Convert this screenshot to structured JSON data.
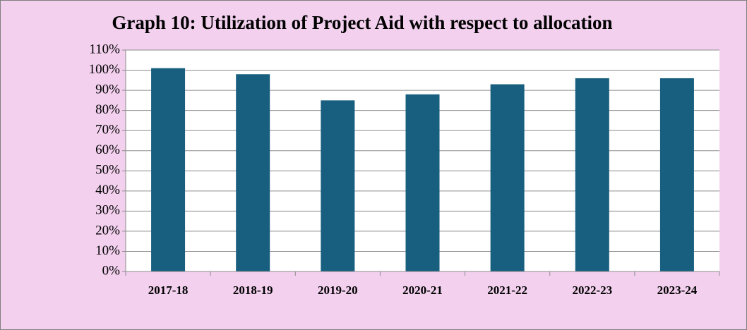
{
  "chart_data": {
    "type": "bar",
    "title": "Graph 10: Utilization of Project Aid with respect to allocation",
    "categories": [
      "2017-18",
      "2018-19",
      "2019-20",
      "2020-21",
      "2021-22",
      "2022-23",
      "2023-24"
    ],
    "values": [
      101,
      98,
      85,
      88,
      93,
      96,
      96
    ],
    "color": "#175e7f",
    "ylim": [
      0,
      110
    ],
    "yticks": [
      {
        "value": 0,
        "label": "0%"
      },
      {
        "value": 10,
        "label": "10%"
      },
      {
        "value": 20,
        "label": "20%"
      },
      {
        "value": 30,
        "label": "30%"
      },
      {
        "value": 40,
        "label": "40%"
      },
      {
        "value": 50,
        "label": "50%"
      },
      {
        "value": 60,
        "label": "60%"
      },
      {
        "value": 70,
        "label": "70%"
      },
      {
        "value": 80,
        "label": "80%"
      },
      {
        "value": 90,
        "label": "90%"
      },
      {
        "value": 100,
        "label": "100%"
      },
      {
        "value": 110,
        "label": "110%"
      }
    ],
    "grid": true
  }
}
